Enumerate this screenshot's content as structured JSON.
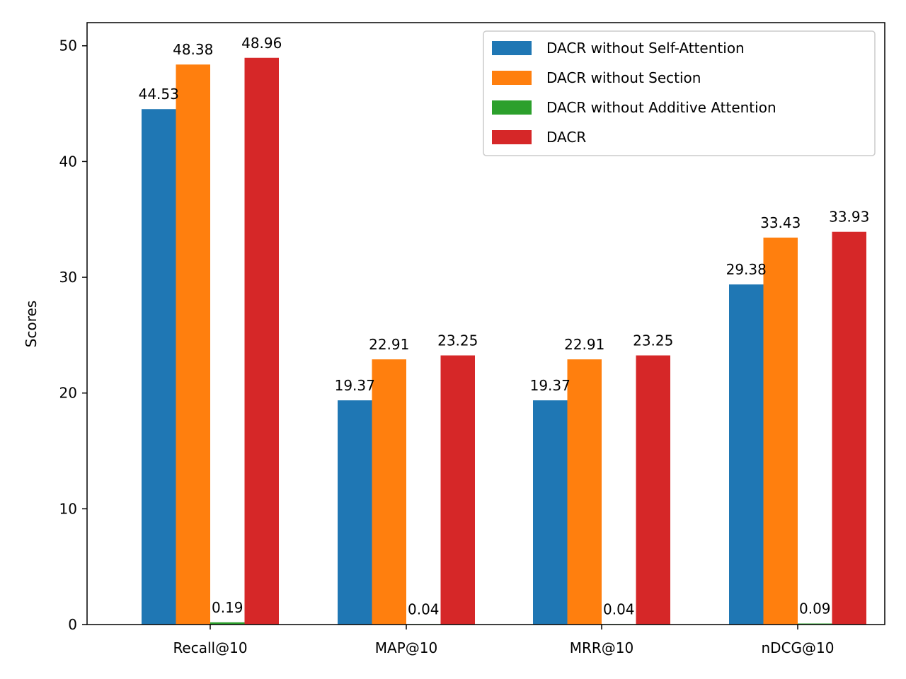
{
  "chart_data": {
    "type": "bar",
    "title": "",
    "xlabel": "",
    "ylabel": "Scores",
    "categories": [
      "Recall@10",
      "MAP@10",
      "MRR@10",
      "nDCG@10"
    ],
    "ylim": [
      0,
      52
    ],
    "yticks": [
      0,
      10,
      20,
      30,
      40,
      50
    ],
    "grid": false,
    "legend_position": "top-right",
    "series": [
      {
        "name": "DACR without Self-Attention",
        "color": "#1f77b4",
        "values": [
          44.53,
          19.37,
          19.37,
          29.38
        ],
        "labels": [
          "44.53",
          "19.37",
          "19.37",
          "29.38"
        ]
      },
      {
        "name": "DACR without Section",
        "color": "#ff7f0e",
        "values": [
          48.38,
          22.91,
          22.91,
          33.43
        ],
        "labels": [
          "48.38",
          "22.91",
          "22.91",
          "33.43"
        ]
      },
      {
        "name": "DACR without Additive Attention",
        "color": "#2ca02c",
        "values": [
          0.19,
          0.04,
          0.04,
          0.09
        ],
        "labels": [
          "0.19",
          "0.04",
          "0.04",
          "0.09"
        ]
      },
      {
        "name": "DACR",
        "color": "#d62728",
        "values": [
          48.96,
          23.25,
          23.25,
          33.93
        ],
        "labels": [
          "48.96",
          "23.25",
          "23.25",
          "33.93"
        ]
      }
    ]
  }
}
